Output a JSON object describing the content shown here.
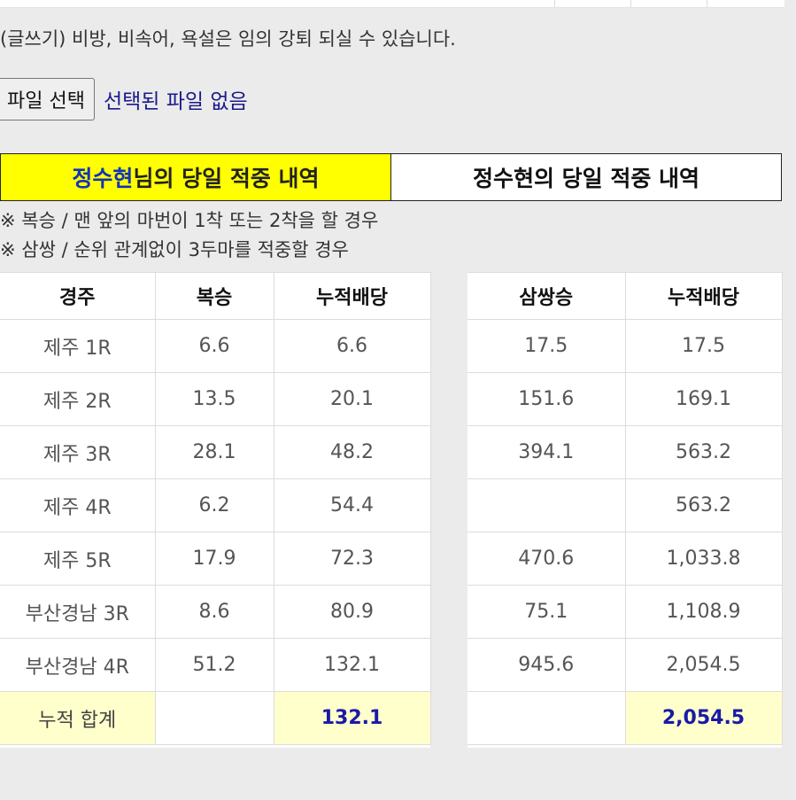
{
  "notice": "(글쓰기) 비방, 비속어, 욕설은 임의 강퇴 되실 수 있습니다.",
  "file_input": {
    "button_label": "파일 선택",
    "status": "선택된 파일 없음"
  },
  "tabs": {
    "active": {
      "name": "정수현",
      "suffix": "님의 당일 적중 내역"
    },
    "inactive": {
      "label": "정수현의 당일 적중 내역"
    }
  },
  "notes": [
    "※ 복승 / 맨 앞의 마번이 1착 또는 2착을 할 경우",
    "※ 삼쌍 / 순위 관계없이 3두마를 적중할 경우"
  ],
  "left_table": {
    "headers": [
      "경주",
      "복승",
      "누적배당"
    ],
    "rows": [
      [
        "제주 1R",
        "6.6",
        "6.6"
      ],
      [
        "제주 2R",
        "13.5",
        "20.1"
      ],
      [
        "제주 3R",
        "28.1",
        "48.2"
      ],
      [
        "제주 4R",
        "6.2",
        "54.4"
      ],
      [
        "제주 5R",
        "17.9",
        "72.3"
      ],
      [
        "부산경남 3R",
        "8.6",
        "80.9"
      ],
      [
        "부산경남 4R",
        "51.2",
        "132.1"
      ]
    ],
    "total": [
      "누적 합계",
      "",
      "132.1"
    ]
  },
  "right_table": {
    "headers": [
      "삼쌍승",
      "누적배당"
    ],
    "rows": [
      [
        "17.5",
        "17.5"
      ],
      [
        "151.6",
        "169.1"
      ],
      [
        "394.1",
        "563.2"
      ],
      [
        "",
        "563.2"
      ],
      [
        "470.6",
        "1,033.8"
      ],
      [
        "75.1",
        "1,108.9"
      ],
      [
        "945.6",
        "2,054.5"
      ]
    ],
    "total": [
      "",
      "2,054.5"
    ]
  },
  "colors": {
    "tab_active_bg": "#ffff00",
    "tab_highlight_text": "#1133bb",
    "total_bg": "#ffffcc",
    "total_text": "#1a1aa8"
  }
}
